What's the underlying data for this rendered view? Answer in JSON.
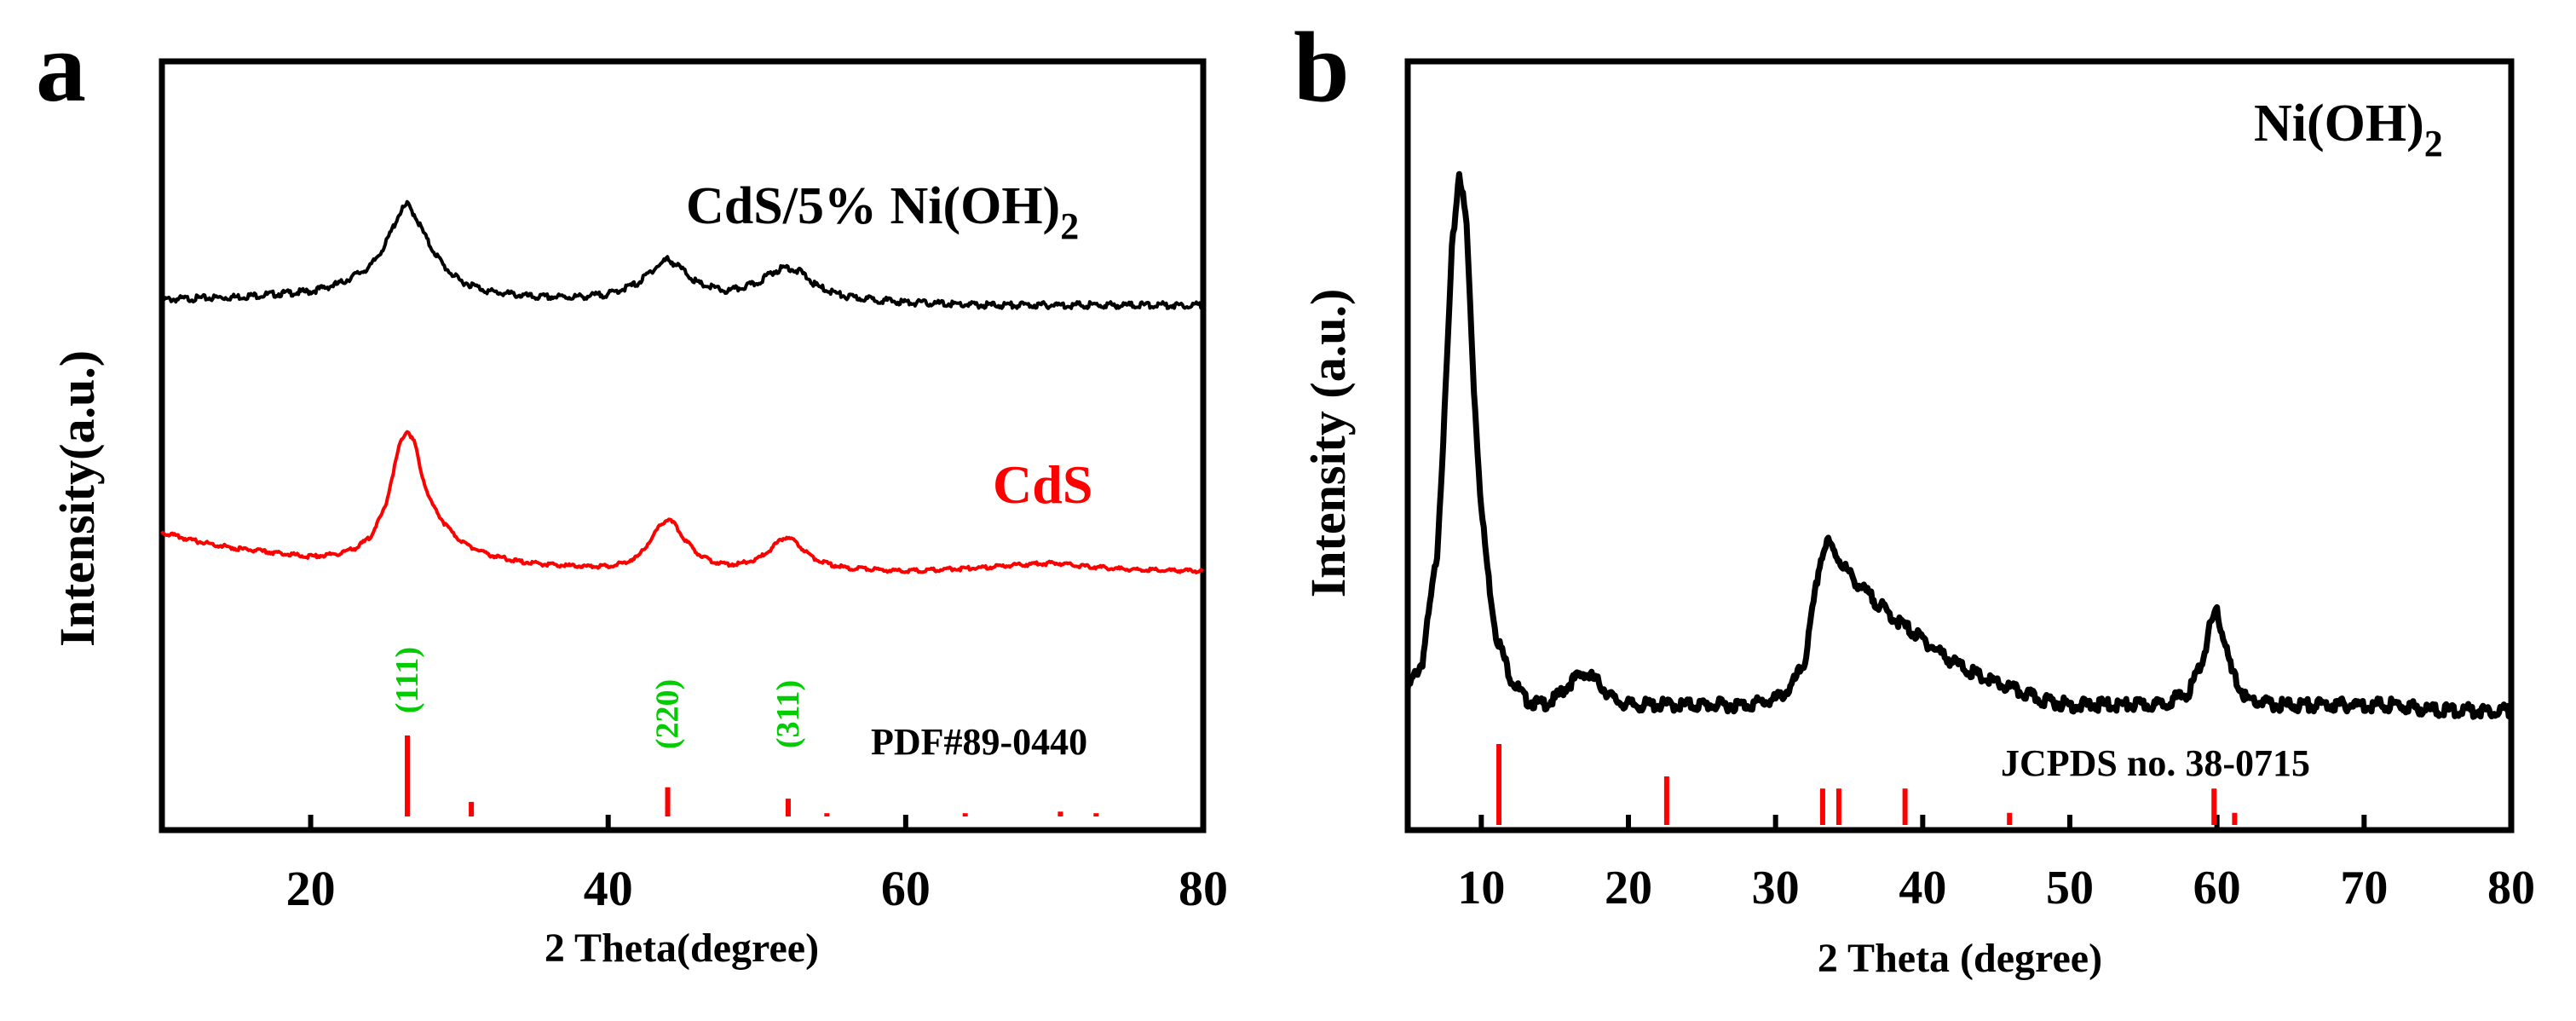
{
  "chart_data": [
    {
      "type": "line",
      "panel_label": "a",
      "xlabel": "2 Theta(degree)",
      "ylabel": "Intensity(a.u.)",
      "xlim": [
        10,
        80
      ],
      "xticks": [
        "20",
        "40",
        "60",
        "80"
      ],
      "y_ticks_shown": false,
      "series": [
        {
          "name": "CdS/5% Ni(OH)2",
          "label_main": "CdS/5% Ni(OH)",
          "label_sub": "2",
          "color": "#000000",
          "x": [
            10,
            15,
            20,
            22,
            24,
            25,
            26,
            26.5,
            27,
            28,
            29,
            30,
            32,
            35,
            38,
            40,
            42,
            43,
            44,
            45,
            46,
            48,
            50,
            51,
            52,
            53,
            54,
            56,
            60,
            65,
            70,
            75,
            80
          ],
          "y": [
            0.02,
            0.03,
            0.05,
            0.08,
            0.14,
            0.22,
            0.34,
            0.37,
            0.33,
            0.22,
            0.14,
            0.09,
            0.05,
            0.03,
            0.03,
            0.04,
            0.08,
            0.13,
            0.17,
            0.13,
            0.08,
            0.05,
            0.08,
            0.12,
            0.14,
            0.12,
            0.07,
            0.03,
            0.01,
            0.0,
            0.0,
            0.0,
            0.0
          ]
        },
        {
          "name": "CdS",
          "label_main": "CdS",
          "color": "#ff0000",
          "x": [
            10,
            12,
            15,
            18,
            20,
            22,
            23,
            24,
            25,
            25.5,
            26,
            26.5,
            27,
            27.5,
            28,
            29,
            30,
            31,
            32,
            34,
            36,
            38,
            40,
            41,
            42,
            43,
            43.5,
            44,
            44.5,
            45,
            46,
            47,
            48,
            49,
            50,
            51,
            51.5,
            52,
            52.5,
            53,
            54,
            55,
            56,
            58,
            60,
            65,
            68,
            70,
            72,
            75,
            80
          ],
          "y": [
            0.25,
            0.2,
            0.15,
            0.12,
            0.1,
            0.12,
            0.15,
            0.22,
            0.4,
            0.6,
            0.8,
            0.88,
            0.8,
            0.6,
            0.45,
            0.3,
            0.2,
            0.15,
            0.11,
            0.07,
            0.05,
            0.04,
            0.04,
            0.06,
            0.1,
            0.22,
            0.3,
            0.33,
            0.3,
            0.22,
            0.12,
            0.07,
            0.05,
            0.06,
            0.08,
            0.15,
            0.2,
            0.22,
            0.2,
            0.15,
            0.08,
            0.05,
            0.03,
            0.02,
            0.01,
            0.03,
            0.05,
            0.06,
            0.04,
            0.02,
            0.01
          ]
        }
      ],
      "reference": {
        "name": "PDF#89-0440",
        "color": "#ff0000",
        "lines": [
          {
            "x": 26.5,
            "h": 1.0
          },
          {
            "x": 30.8,
            "h": 0.18
          },
          {
            "x": 44.0,
            "h": 0.36
          },
          {
            "x": 52.1,
            "h": 0.22
          },
          {
            "x": 54.7,
            "h": 0.04
          },
          {
            "x": 64.0,
            "h": 0.04
          },
          {
            "x": 70.4,
            "h": 0.06
          },
          {
            "x": 72.8,
            "h": 0.04
          }
        ],
        "hkl": [
          {
            "label": "(111)",
            "x": 26.5,
            "color": "#00cc00"
          },
          {
            "label": "(220)",
            "x": 44.0,
            "color": "#00cc00"
          },
          {
            "label": "(311)",
            "x": 52.1,
            "color": "#00cc00"
          }
        ]
      }
    },
    {
      "type": "line",
      "panel_label": "b",
      "xlabel": "2 Theta (degree)",
      "ylabel": "Intensity (a.u.)",
      "xlim": [
        5,
        80
      ],
      "xticks": [
        "10",
        "20",
        "30",
        "40",
        "50",
        "60",
        "70",
        "80"
      ],
      "y_ticks_shown": false,
      "series": [
        {
          "name": "Ni(OH)2",
          "label_main": "Ni(OH)",
          "label_sub": "2",
          "color": "#000000",
          "x": [
            5,
            6,
            7,
            7.5,
            8,
            8.5,
            9,
            9.5,
            10,
            10.5,
            11,
            12,
            13,
            14,
            15,
            16,
            17,
            18,
            19,
            20,
            22,
            25,
            28,
            30,
            31,
            32,
            33,
            33.5,
            34,
            35,
            36,
            38,
            40,
            42,
            44,
            46,
            48,
            50,
            52,
            54,
            56,
            58,
            59,
            59.5,
            60,
            60.5,
            61,
            62,
            64,
            66,
            68,
            70,
            72,
            75,
            80
          ],
          "y": [
            0.05,
            0.1,
            0.3,
            0.55,
            0.85,
            1.0,
            0.9,
            0.6,
            0.38,
            0.25,
            0.15,
            0.07,
            0.03,
            0.02,
            0.03,
            0.06,
            0.08,
            0.06,
            0.03,
            0.02,
            0.02,
            0.02,
            0.02,
            0.03,
            0.05,
            0.1,
            0.28,
            0.32,
            0.3,
            0.26,
            0.23,
            0.18,
            0.14,
            0.1,
            0.07,
            0.05,
            0.03,
            0.02,
            0.02,
            0.02,
            0.02,
            0.04,
            0.1,
            0.16,
            0.19,
            0.14,
            0.08,
            0.03,
            0.02,
            0.02,
            0.02,
            0.02,
            0.02,
            0.01,
            0.01
          ]
        }
      ],
      "reference": {
        "name": "JCPDS no. 38-0715",
        "color": "#ff0000",
        "lines": [
          {
            "x": 11.2,
            "h": 1.0
          },
          {
            "x": 22.6,
            "h": 0.6
          },
          {
            "x": 33.2,
            "h": 0.45
          },
          {
            "x": 34.3,
            "h": 0.45
          },
          {
            "x": 38.8,
            "h": 0.45
          },
          {
            "x": 45.9,
            "h": 0.15
          },
          {
            "x": 59.8,
            "h": 0.45
          },
          {
            "x": 61.2,
            "h": 0.15
          }
        ]
      }
    }
  ]
}
